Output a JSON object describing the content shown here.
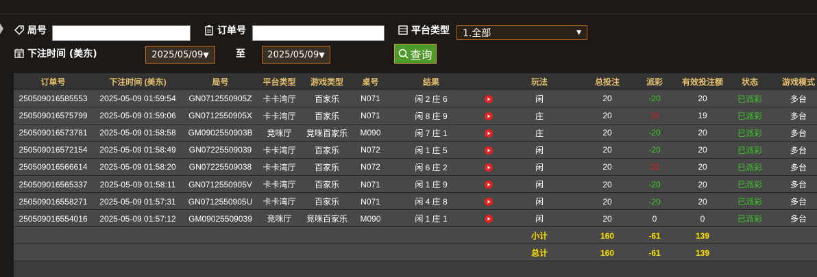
{
  "filters": {
    "round_label": "局号",
    "order_label": "订单号",
    "platform_label": "平台类型",
    "platform_value": "1.全部",
    "time_label": "下注时间 (美东)",
    "start_date": "2025/05/09",
    "separator": "至",
    "end_date": "2025/05/09",
    "query_button": "查询"
  },
  "table": {
    "headers": [
      "订单号",
      "下注时间 (美东)",
      "局号",
      "平台类型",
      "游戏类型",
      "桌号",
      "结果",
      "玩法",
      "总投注",
      "派彩",
      "有效投注额",
      "状态",
      "游戏模式"
    ],
    "rows": [
      [
        "250509016585553",
        "2025-05-09 01:59:54",
        "GN0712550905Z",
        "卡卡湾厅",
        "百家乐",
        "N071",
        "闲 2 庄 6",
        "闲",
        "20",
        "-20",
        "20",
        "已派彩",
        "多台"
      ],
      [
        "250509016575799",
        "2025-05-09 01:59:06",
        "GN0712550905X",
        "卡卡湾厅",
        "百家乐",
        "N071",
        "闲 8 庄 9",
        "庄",
        "20",
        "19",
        "19",
        "已派彩",
        "多台"
      ],
      [
        "250509016573781",
        "2025-05-09 01:58:58",
        "GM0902550903B",
        "竞咪厅",
        "竞咪百家乐",
        "M090",
        "闲 7 庄 1",
        "庄",
        "20",
        "-20",
        "20",
        "已派彩",
        "多台"
      ],
      [
        "250509016572154",
        "2025-05-09 01:58:49",
        "GN07225509039",
        "卡卡湾厅",
        "百家乐",
        "N072",
        "闲 1 庄 5",
        "闲",
        "20",
        "-20",
        "20",
        "已派彩",
        "多台"
      ],
      [
        "250509016566614",
        "2025-05-09 01:58:20",
        "GN07225509038",
        "卡卡湾厅",
        "百家乐",
        "N072",
        "闲 6 庄 2",
        "闲",
        "20",
        "20",
        "20",
        "已派彩",
        "多台"
      ],
      [
        "250509016565337",
        "2025-05-09 01:58:11",
        "GN0712550905V",
        "卡卡湾厅",
        "百家乐",
        "N071",
        "闲 1 庄 9",
        "闲",
        "20",
        "-20",
        "20",
        "已派彩",
        "多台"
      ],
      [
        "250509016558271",
        "2025-05-09 01:57:31",
        "GN0712550905U",
        "卡卡湾厅",
        "百家乐",
        "N071",
        "闲 4 庄 8",
        "闲",
        "20",
        "-20",
        "20",
        "已派彩",
        "多台"
      ],
      [
        "250509016554016",
        "2025-05-09 01:57:12",
        "GM09025509039",
        "竞咪厅",
        "竞咪百家乐",
        "M090",
        "闲 1 庄 1",
        "闲",
        "20",
        "0",
        "0",
        "已派彩",
        "多台"
      ]
    ],
    "subtotal": {
      "label": "小计",
      "values": [
        "160",
        "-61",
        "139"
      ]
    },
    "total": {
      "label": "总计",
      "values": [
        "160",
        "-61",
        "139"
      ]
    }
  }
}
